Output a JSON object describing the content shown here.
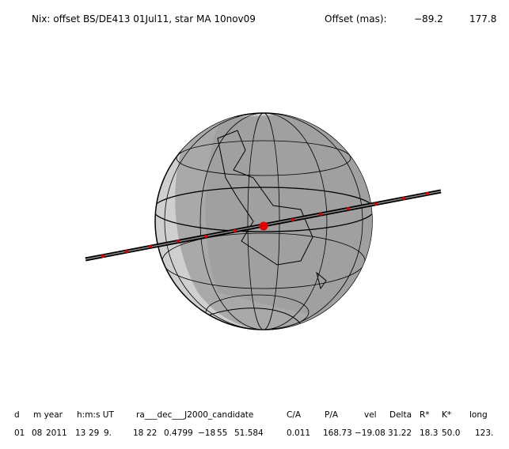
{
  "header": {
    "title": "Nix: offset BS/DE413 01Jul11, star MA 10nov09",
    "offset_label": "Offset (mas):",
    "offset_values": [
      "−89.2",
      "177.8"
    ]
  },
  "table": {
    "columns": [
      "d",
      "m year",
      "h:m:s UT",
      "ra___dec___J2000_candidate",
      "C/A",
      "P/A",
      "vel",
      "Delta",
      "R*",
      "K*",
      "long"
    ],
    "row": [
      "01",
      "08",
      "2011",
      "13",
      "29",
      "9.",
      "18",
      "22",
      "0.4799",
      "−18",
      "55",
      "51.584",
      "0.011",
      "168.73",
      "−19.08",
      "31.22",
      "18.3",
      "50.0",
      "123."
    ]
  }
}
